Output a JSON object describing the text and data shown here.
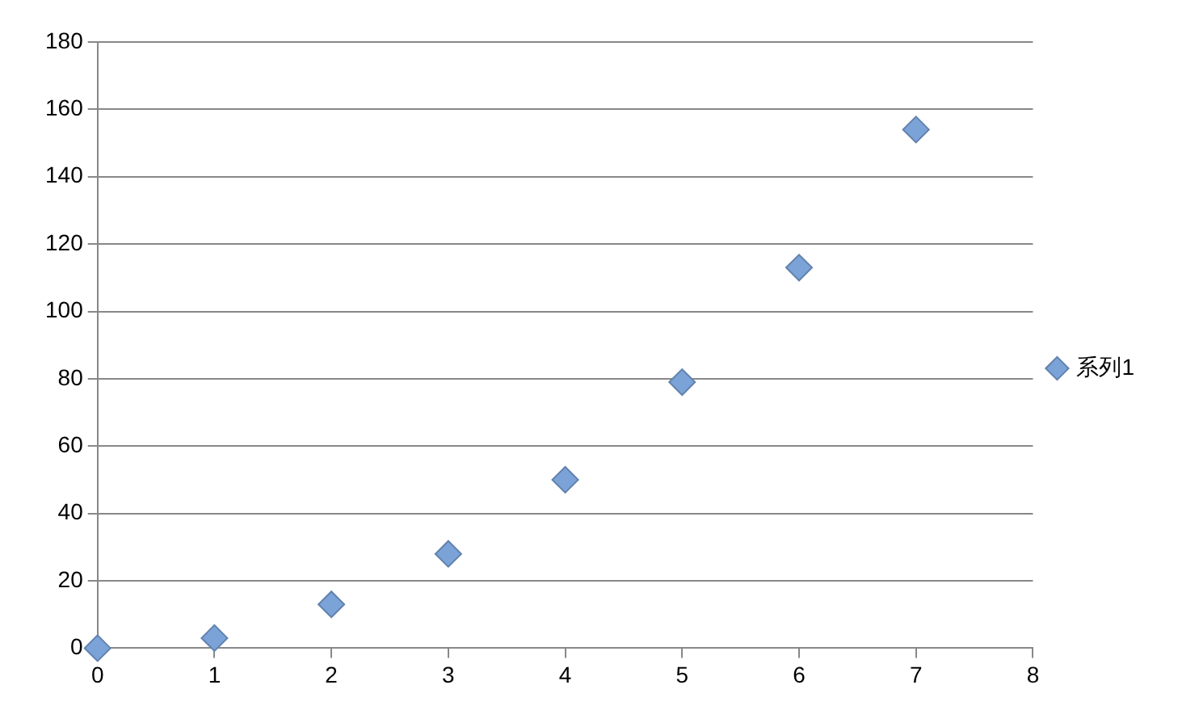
{
  "chart_data": {
    "type": "scatter",
    "x": [
      0,
      1,
      2,
      3,
      4,
      5,
      6,
      7
    ],
    "series": [
      {
        "name": "系列1",
        "color": "#7ba3d8",
        "values": [
          0,
          3,
          13,
          28,
          50,
          79,
          113,
          154
        ]
      }
    ],
    "xlim": [
      0,
      8
    ],
    "xticks": [
      0,
      1,
      2,
      3,
      4,
      5,
      6,
      7,
      8
    ],
    "ylim": [
      0,
      180
    ],
    "yticks": [
      0,
      20,
      40,
      60,
      80,
      100,
      120,
      140,
      160,
      180
    ],
    "grid": "y",
    "legend": "right",
    "marker": "diamond"
  }
}
